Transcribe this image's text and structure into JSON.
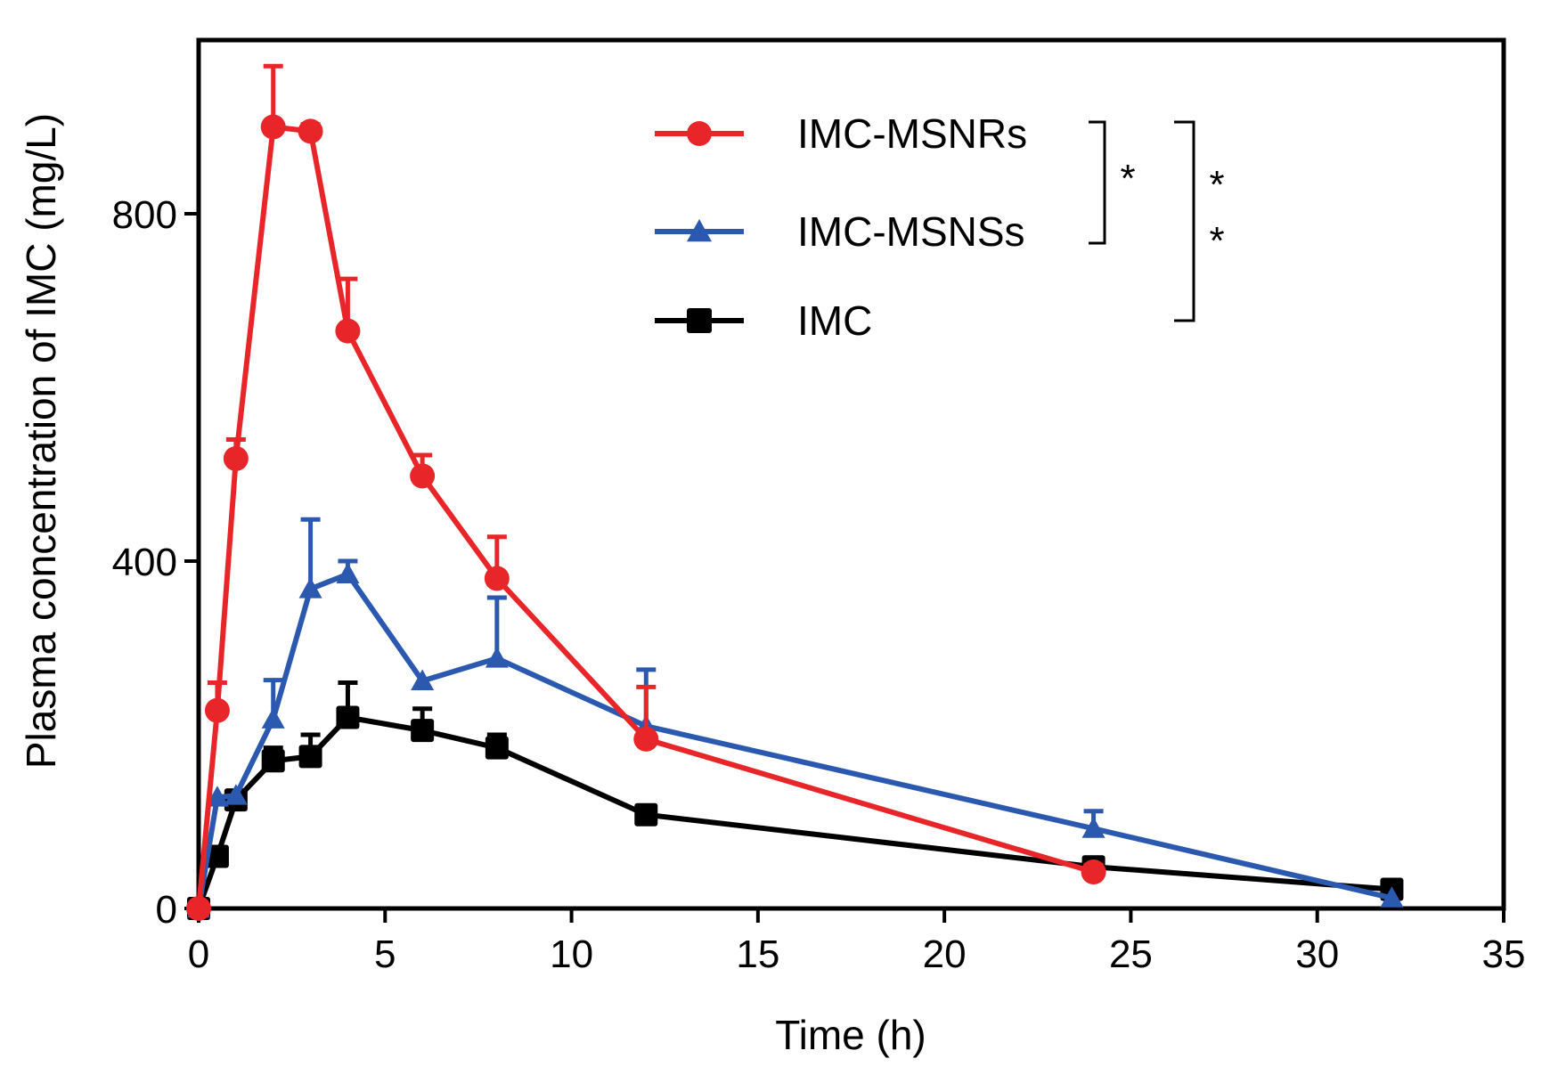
{
  "chart_data": {
    "type": "line",
    "title": "",
    "xlabel": "Time (h)",
    "ylabel": "Plasma concentration of IMC (mg/L)",
    "xlim": [
      0,
      35
    ],
    "ylim": [
      0,
      1000
    ],
    "xticks": [
      0,
      5,
      10,
      15,
      20,
      25,
      30,
      35
    ],
    "yticks": [
      0,
      400,
      800
    ],
    "xtick_labels": [
      "0",
      "5",
      "10",
      "15",
      "20",
      "25",
      "30",
      "35"
    ],
    "ytick_labels": [
      "0",
      "400",
      "800"
    ],
    "grid": false,
    "legend_position": "top-right",
    "series": [
      {
        "name": "IMC-MSNRs",
        "color": "#e8262a",
        "marker": "circle",
        "x": [
          0,
          0.5,
          1,
          2,
          3,
          4,
          6,
          8,
          12,
          24
        ],
        "y": [
          0,
          228,
          518,
          900,
          895,
          665,
          498,
          380,
          195,
          42
        ],
        "err": [
          0,
          32,
          22,
          70,
          8,
          60,
          24,
          48,
          60,
          8
        ]
      },
      {
        "name": "IMC-MSNSs",
        "color": "#2b59b0",
        "marker": "triangle",
        "x": [
          0,
          0.5,
          1,
          2,
          3,
          4,
          6,
          8,
          12,
          24,
          32
        ],
        "y": [
          0,
          128,
          130,
          218,
          368,
          385,
          262,
          288,
          210,
          92,
          12
        ],
        "err": [
          0,
          0,
          0,
          45,
          80,
          15,
          0,
          70,
          65,
          20,
          0
        ]
      },
      {
        "name": "IMC",
        "color": "#000000",
        "marker": "square",
        "x": [
          0,
          0.5,
          1,
          2,
          3,
          4,
          6,
          8,
          12,
          24,
          32
        ],
        "y": [
          0,
          60,
          125,
          170,
          175,
          220,
          205,
          185,
          108,
          48,
          22
        ],
        "err": [
          0,
          0,
          0,
          15,
          25,
          40,
          25,
          15,
          8,
          10,
          0
        ]
      }
    ],
    "significance": [
      {
        "label": "*",
        "between": [
          "IMC-MSNRs",
          "IMC-MSNSs"
        ]
      },
      {
        "label": "* *",
        "between": [
          "IMC-MSNRs",
          "IMC"
        ]
      }
    ]
  }
}
